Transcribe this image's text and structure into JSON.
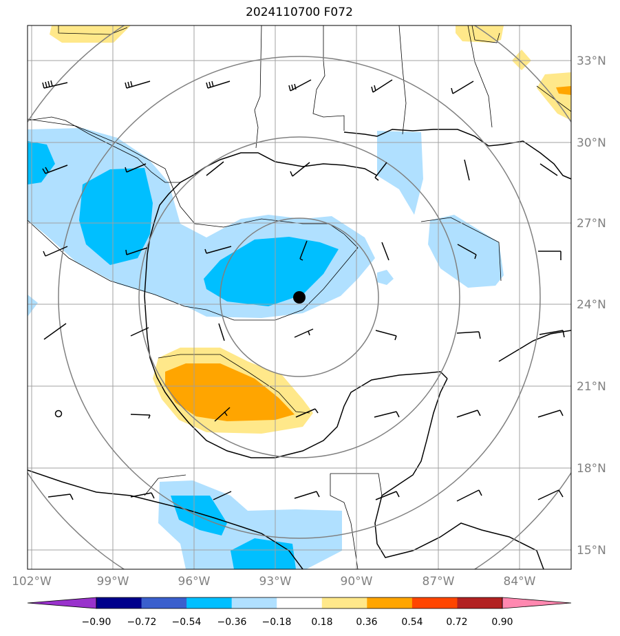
{
  "title": "2024110700 F072",
  "lat_labels": [
    "33°N",
    "30°N",
    "27°N",
    "24°N",
    "21°N",
    "18°N",
    "15°N"
  ],
  "lon_labels": [
    "102°W",
    "99°W",
    "96°W",
    "93°W",
    "90°W",
    "87°W",
    "84°W"
  ],
  "colorbar": {
    "labels": [
      "−0.90",
      "−0.72",
      "−0.54",
      "−0.36",
      "−0.18",
      "0.18",
      "0.36",
      "0.54",
      "0.72",
      "0.90"
    ],
    "colors": [
      "#9932CC",
      "#00008B",
      "#3A5FCD",
      "#00BFFF",
      "#B0E0FF",
      "#FFFFFF",
      "#FFE88A",
      "#FFA500",
      "#FF4500",
      "#B22222",
      "#FF88B0"
    ]
  },
  "colors": {
    "light_blue": "#B0E0FF",
    "medium_blue": "#00BFFF",
    "light_yellow": "#FFE88A",
    "orange": "#FFA500",
    "grid": "#A0A0A0",
    "range_rings": "#808080"
  },
  "storm_center": {
    "lat": 24.3,
    "lon": -92.7
  }
}
